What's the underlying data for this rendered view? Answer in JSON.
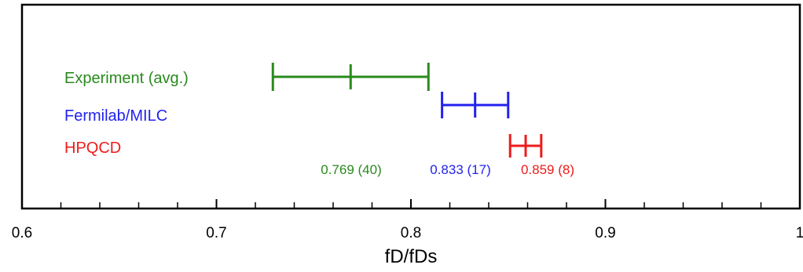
{
  "chart_data": {
    "type": "errorbar",
    "title": "",
    "xlabel": "fD/fDs",
    "ylabel": "",
    "xlim": [
      0.6,
      1.0
    ],
    "x_major_ticks": [
      "0.6",
      "0.7",
      "0.8",
      "0.9",
      "1"
    ],
    "x_minor_step": 0.02,
    "grid": false,
    "series": [
      {
        "name": "Experiment (avg.)",
        "value": 0.769,
        "low": 0.729,
        "high": 0.809,
        "color": "#2a8a1e",
        "value_label": "0.769 (40)"
      },
      {
        "name": "Fermilab/MILC",
        "value": 0.833,
        "low": 0.816,
        "high": 0.85,
        "color": "#2222ee",
        "value_label": "0.833 (17)"
      },
      {
        "name": "HPQCD",
        "value": 0.859,
        "low": 0.851,
        "high": 0.867,
        "color": "#ee1b1b",
        "value_label": "0.859 (8)"
      }
    ]
  }
}
